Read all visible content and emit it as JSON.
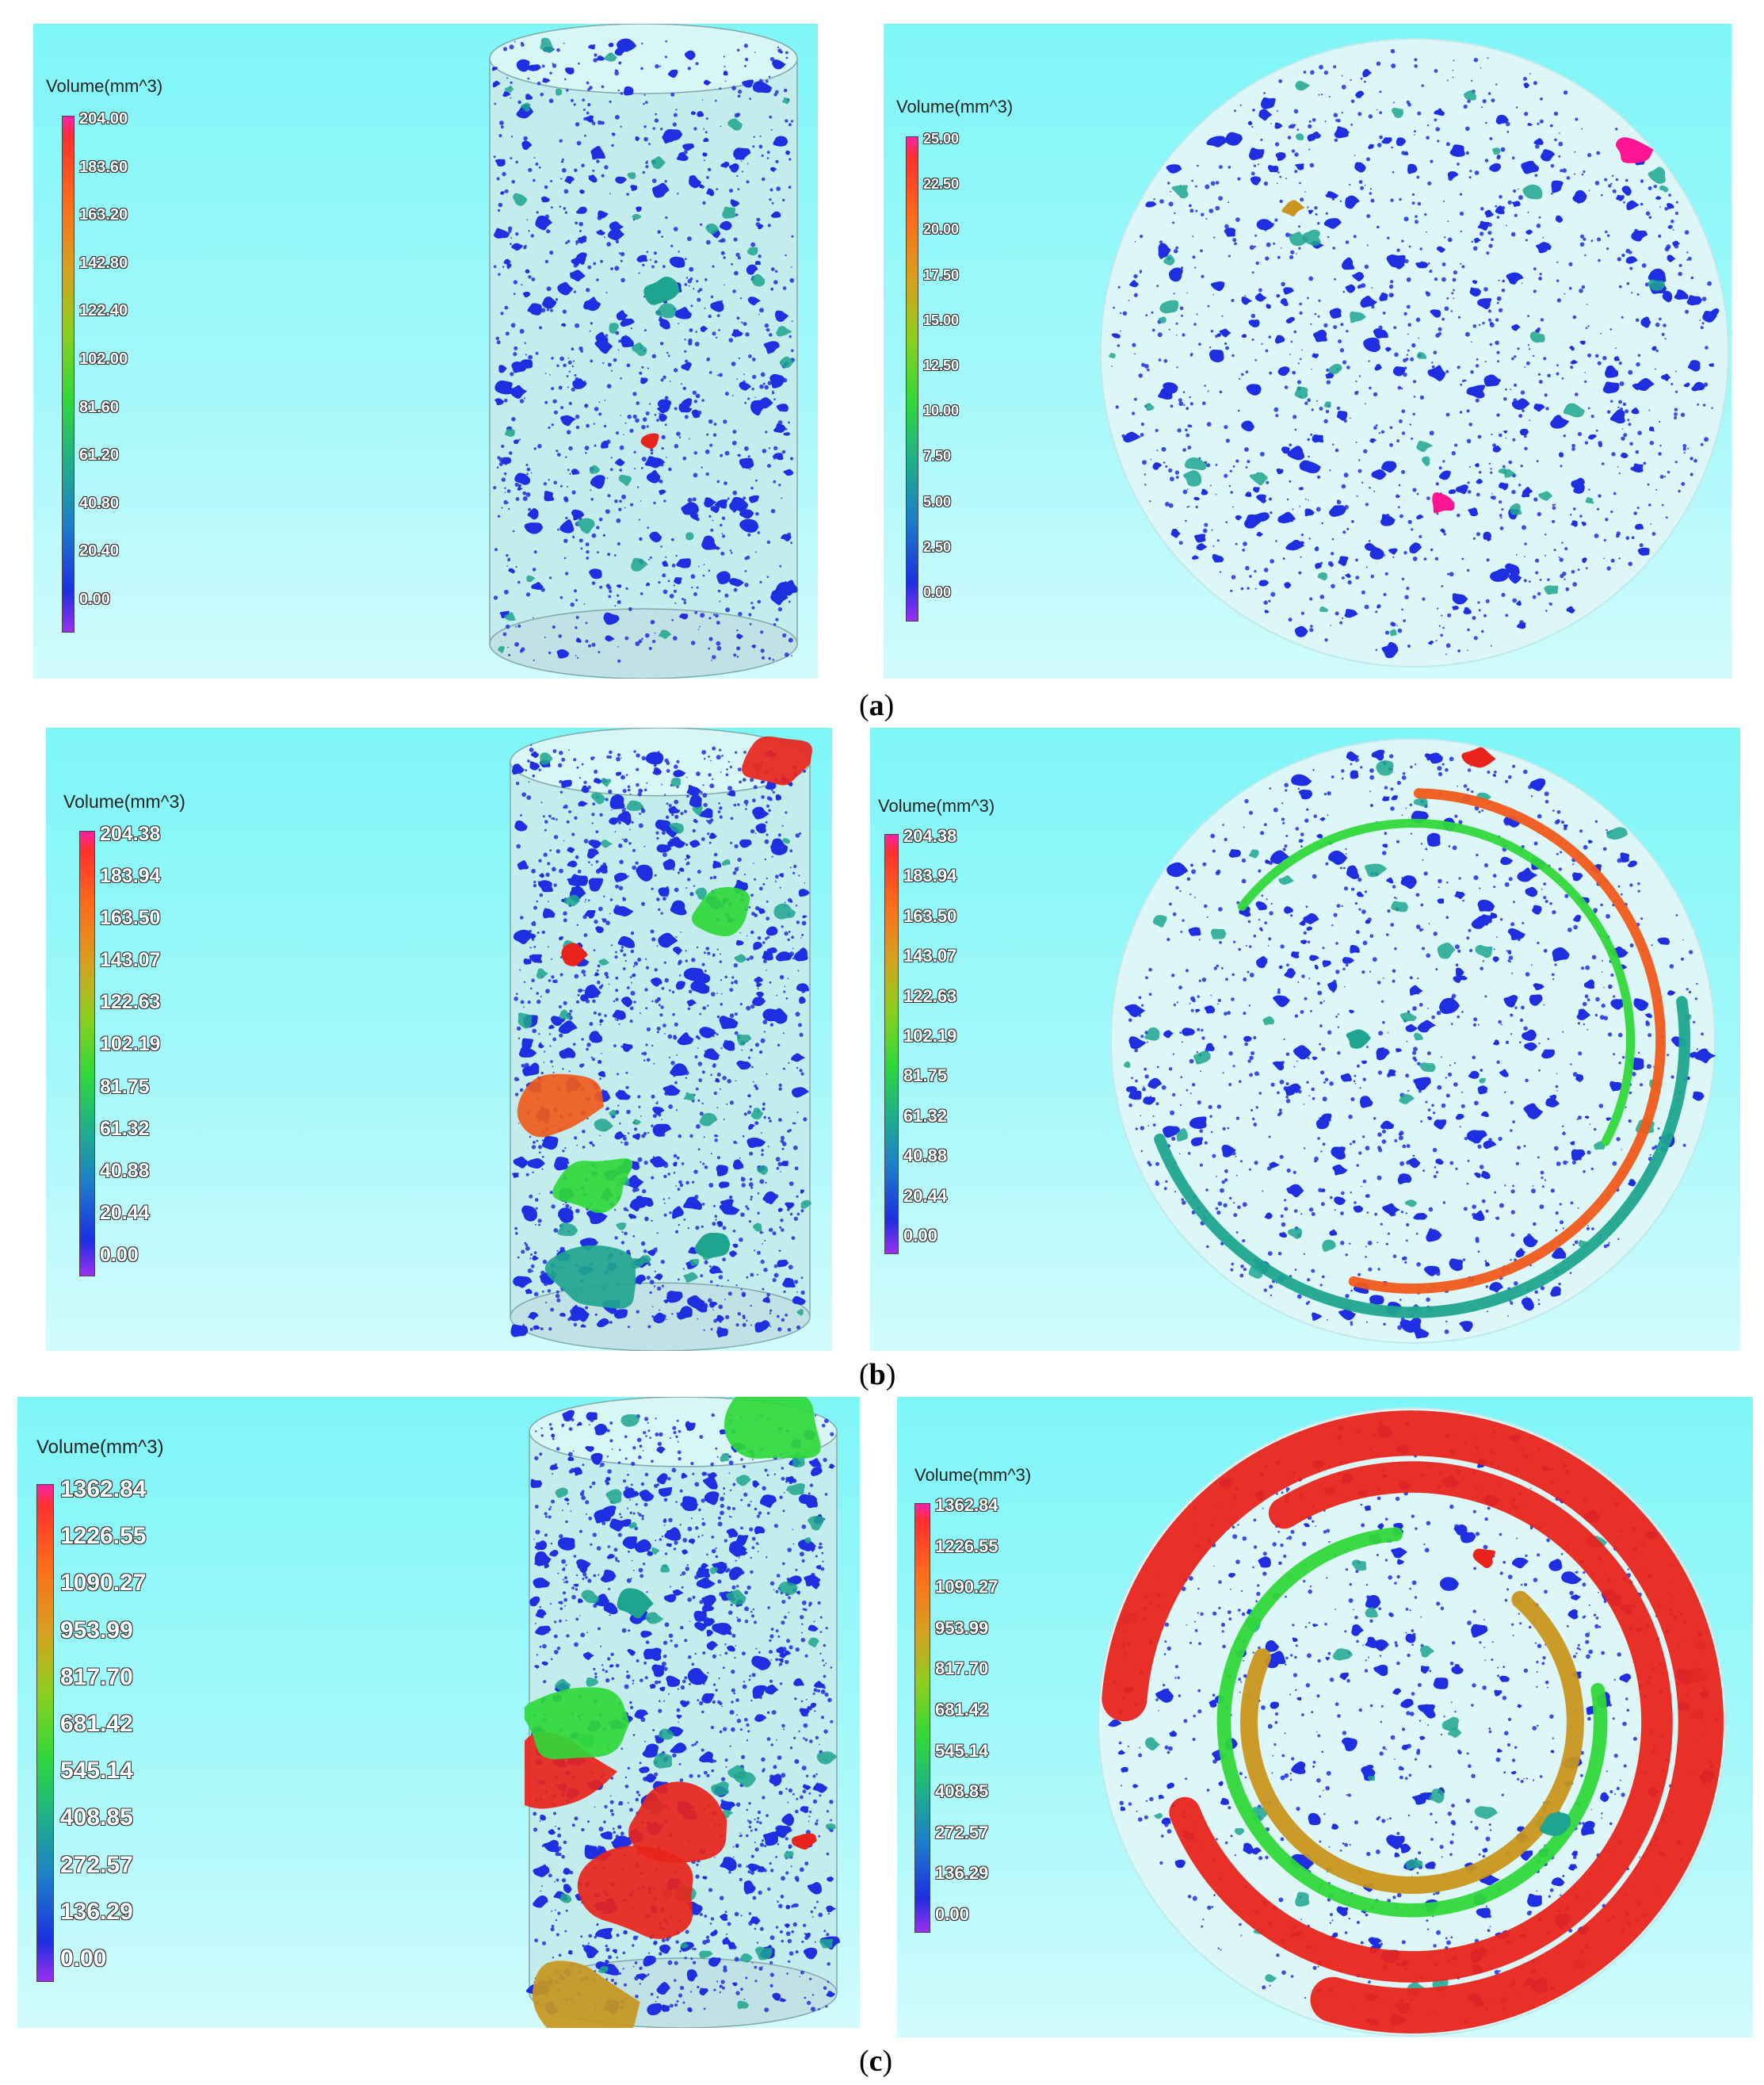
{
  "panels": [
    {
      "id": "a-cylinder",
      "legend": {
        "title": "Volume(mm^3)",
        "ticks": [
          "204.00",
          "183.60",
          "163.20",
          "142.80",
          "122.40",
          "102.00",
          "81.60",
          "61.20",
          "40.80",
          "20.40",
          "0.00"
        ]
      }
    },
    {
      "id": "a-top",
      "legend": {
        "title": "Volume(mm^3)",
        "ticks": [
          "25.00",
          "22.50",
          "20.00",
          "17.50",
          "15.00",
          "12.50",
          "10.00",
          "7.50",
          "5.00",
          "2.50",
          "0.00"
        ]
      }
    },
    {
      "id": "b-cylinder",
      "legend": {
        "title": "Volume(mm^3)",
        "ticks": [
          "204.38",
          "183.94",
          "163.50",
          "143.07",
          "122.63",
          "102.19",
          "81.75",
          "61.32",
          "40.88",
          "20.44",
          "0.00"
        ]
      }
    },
    {
      "id": "b-top",
      "legend": {
        "title": "Volume(mm^3)",
        "ticks": [
          "204.38",
          "183.94",
          "163.50",
          "143.07",
          "122.63",
          "102.19",
          "81.75",
          "61.32",
          "40.88",
          "20.44",
          "0.00"
        ]
      }
    },
    {
      "id": "c-cylinder",
      "legend": {
        "title": "Volume(mm^3)",
        "ticks": [
          "1362.84",
          "1226.55",
          "1090.27",
          "953.99",
          "817.70",
          "681.42",
          "545.14",
          "408.85",
          "272.57",
          "136.29",
          "0.00"
        ]
      }
    },
    {
      "id": "c-top",
      "legend": {
        "title": "Volume(mm^3)",
        "ticks": [
          "1362.84",
          "1226.55",
          "1090.27",
          "953.99",
          "817.70",
          "681.42",
          "545.14",
          "408.85",
          "272.57",
          "136.29",
          "0.00"
        ]
      }
    }
  ],
  "captions": {
    "a": "a",
    "b": "b",
    "c": "c"
  },
  "colors": {
    "background": "#7ef6f8",
    "pore_blue": "#1d2fe0",
    "red": "#e8241c",
    "orange": "#f05a1a",
    "green": "#2fd83a",
    "teal": "#1fa58f",
    "gold": "#c8961e",
    "magenta": "#ff1493"
  }
}
